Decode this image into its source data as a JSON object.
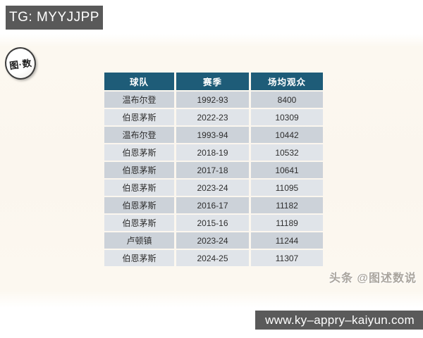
{
  "page": {
    "tg_badge": "TG: MYYJJPP",
    "logo_text": "图·数",
    "credit": "头条 @图述数说",
    "url": "www.ky–appry–kaiyun.com"
  },
  "colors": {
    "header_bg": "#1e5c78",
    "row_dark": "#ccd2d9",
    "row_light": "#e0e4e9",
    "badge_bg": "#595959",
    "url_bar_bg": "#5a5a5a",
    "background_cream": "#fbf6ee"
  },
  "table": {
    "headers": [
      "球队",
      "赛季",
      "场均观众"
    ],
    "rows": [
      {
        "team": "温布尔登",
        "season": "1992-93",
        "attendance": "8400"
      },
      {
        "team": "伯恩茅斯",
        "season": "2022-23",
        "attendance": "10309"
      },
      {
        "team": "温布尔登",
        "season": "1993-94",
        "attendance": "10442"
      },
      {
        "team": "伯恩茅斯",
        "season": "2018-19",
        "attendance": "10532"
      },
      {
        "team": "伯恩茅斯",
        "season": "2017-18",
        "attendance": "10641"
      },
      {
        "team": "伯恩茅斯",
        "season": "2023-24",
        "attendance": "11095"
      },
      {
        "team": "伯恩茅斯",
        "season": "2016-17",
        "attendance": "11182"
      },
      {
        "team": "伯恩茅斯",
        "season": "2015-16",
        "attendance": "11189"
      },
      {
        "team": "卢顿镇",
        "season": "2023-24",
        "attendance": "11244"
      },
      {
        "team": "伯恩茅斯",
        "season": "2024-25",
        "attendance": "11307"
      }
    ]
  },
  "chart_data": {
    "type": "table",
    "title": "",
    "columns": [
      "球队",
      "赛季",
      "场均观众"
    ],
    "rows": [
      [
        "温布尔登",
        "1992-93",
        8400
      ],
      [
        "伯恩茅斯",
        "2022-23",
        10309
      ],
      [
        "温布尔登",
        "1993-94",
        10442
      ],
      [
        "伯恩茅斯",
        "2018-19",
        10532
      ],
      [
        "伯恩茅斯",
        "2017-18",
        10641
      ],
      [
        "伯恩茅斯",
        "2023-24",
        11095
      ],
      [
        "伯恩茅斯",
        "2016-17",
        11182
      ],
      [
        "伯恩茅斯",
        "2015-16",
        11189
      ],
      [
        "卢顿镇",
        "2023-24",
        11244
      ],
      [
        "伯恩茅斯",
        "2024-25",
        11307
      ]
    ]
  }
}
